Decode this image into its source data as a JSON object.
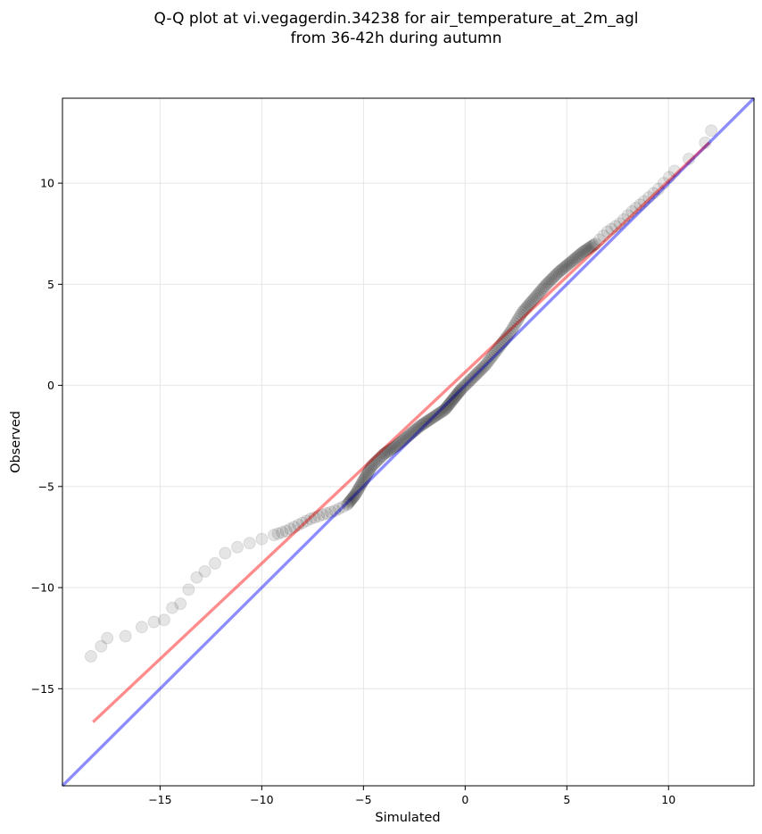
{
  "chart_data": {
    "type": "scatter",
    "title": [
      "Q-Q plot at vi.vegagerdin.34238 for air_temperature_at_2m_agl",
      "from 36-42h during autumn"
    ],
    "xlabel": "Simulated",
    "ylabel": "Observed",
    "xlim": [
      -19.8,
      14.2
    ],
    "ylim": [
      -19.8,
      14.2
    ],
    "xticks": [
      -15,
      -10,
      -5,
      0,
      5,
      10
    ],
    "yticks": [
      -15,
      -10,
      -5,
      0,
      5,
      10
    ],
    "grid": true,
    "points_color": "#000000",
    "identity_line": {
      "x": [
        -19.8,
        14.2
      ],
      "y": [
        -19.8,
        14.2
      ],
      "color": "#0000ff"
    },
    "fit_line": {
      "x": [
        -18.3,
        12.0
      ],
      "y": [
        -16.65,
        12.0
      ],
      "color": "#ff0000"
    },
    "quantile_curve": {
      "x": [
        -18.4,
        -17.9,
        -17.6,
        -16.7,
        -15.9,
        -15.3,
        -14.8,
        -14.4,
        -14.0,
        -13.6,
        -13.2,
        -12.8,
        -12.3,
        -11.8,
        -11.2,
        -10.6,
        -10.0,
        -9.4,
        -8.8,
        -8.2,
        -7.6,
        -7.0,
        -6.4,
        -5.8,
        -5.4,
        -5.0,
        -4.6,
        -4.0,
        -3.4,
        -2.8,
        -2.2,
        -1.6,
        -1.0,
        -0.6,
        -0.2,
        0.4,
        1.0,
        1.6,
        2.2,
        2.8,
        3.4,
        4.0,
        4.6,
        5.2,
        5.8,
        6.4,
        7.0,
        7.6,
        8.2,
        8.8,
        9.5,
        10.3,
        11.0,
        11.8,
        12.1
      ],
      "y": [
        -13.4,
        -12.9,
        -12.5,
        -12.4,
        -11.95,
        -11.7,
        -11.6,
        -11.0,
        -10.8,
        -10.1,
        -9.5,
        -9.2,
        -8.8,
        -8.3,
        -8.0,
        -7.8,
        -7.6,
        -7.4,
        -7.2,
        -6.9,
        -6.6,
        -6.4,
        -6.2,
        -5.9,
        -5.4,
        -4.7,
        -4.0,
        -3.4,
        -3.0,
        -2.5,
        -2.0,
        -1.6,
        -1.2,
        -0.7,
        -0.2,
        0.4,
        1.0,
        1.8,
        2.6,
        3.6,
        4.3,
        5.0,
        5.6,
        6.1,
        6.6,
        7.0,
        7.6,
        8.0,
        8.6,
        9.1,
        9.7,
        10.6,
        11.2,
        12.0,
        12.6
      ]
    }
  }
}
